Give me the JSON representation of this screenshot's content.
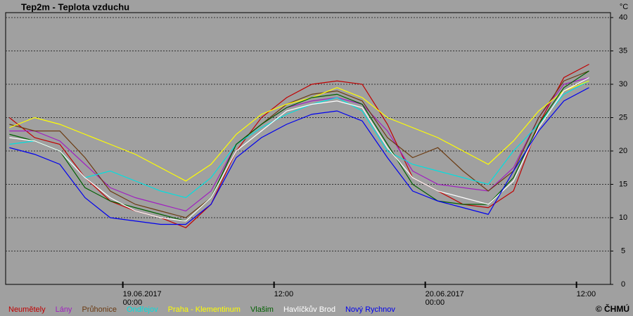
{
  "chart_data": {
    "type": "line",
    "title": "Tep2m - Teplota vzduchu",
    "y_unit": "°C",
    "credit": "© ČHMÚ",
    "x": [
      -9,
      -7,
      -5,
      -3,
      -1,
      1,
      3,
      5,
      7,
      9,
      11,
      13,
      15,
      17,
      19,
      21,
      23,
      25,
      27,
      29,
      31,
      33,
      35,
      37
    ],
    "xlim": [
      -9.3,
      38.7
    ],
    "xticks": [
      {
        "value": 0,
        "label": "19.06.2017 00:00"
      },
      {
        "value": 12,
        "label": "12:00"
      },
      {
        "value": 24,
        "label": "20.06.2017 00:00"
      },
      {
        "value": 36,
        "label": "12:00"
      }
    ],
    "ylim": [
      0,
      40
    ],
    "yticks": [
      0,
      5,
      10,
      15,
      20,
      25,
      30,
      35,
      40
    ],
    "grid": true,
    "series": [
      {
        "name": "Neumětely",
        "color": "#c00000",
        "values": [
          25,
          22,
          21,
          16,
          12.5,
          11,
          10,
          8.5,
          12,
          20,
          25,
          28,
          30,
          30.5,
          30,
          24,
          16,
          14,
          12,
          11.5,
          14,
          24,
          31,
          33
        ]
      },
      {
        "name": "Lány",
        "color": "#a020c0",
        "values": [
          23,
          23,
          21.5,
          18,
          14.5,
          13,
          12,
          11,
          14,
          21,
          24,
          26.5,
          27.5,
          28,
          27,
          23,
          17,
          15,
          14.5,
          14,
          17.5,
          25,
          30,
          31
        ]
      },
      {
        "name": "Průhonice",
        "color": "#6b3a10",
        "values": [
          24,
          23,
          23,
          19,
          14,
          12,
          11,
          10,
          13,
          21,
          24,
          27,
          28.5,
          29,
          27.5,
          22,
          19,
          20.5,
          17,
          14,
          17,
          25,
          30.5,
          32
        ]
      },
      {
        "name": "Ondřejov",
        "color": "#00e0e0",
        "values": [
          21,
          21.5,
          20,
          16,
          17,
          15.5,
          14,
          13,
          16,
          21,
          23.5,
          25.5,
          27,
          28,
          26,
          20,
          18,
          17,
          16,
          15,
          20,
          24,
          28.5,
          30.5
        ]
      },
      {
        "name": "Praha - Klementinum",
        "color": "#ffff00",
        "values": [
          23.5,
          25,
          24,
          22.5,
          21,
          19.5,
          17.5,
          15.5,
          18,
          22.5,
          25.5,
          27,
          28,
          29.5,
          28,
          25,
          23.5,
          22,
          20,
          18,
          21.5,
          26,
          29,
          30.5
        ]
      },
      {
        "name": "Vlašim",
        "color": "#006000",
        "values": [
          22.5,
          21.5,
          20,
          14.5,
          12.5,
          11.5,
          10.5,
          9.5,
          13,
          21,
          24,
          26.5,
          28,
          28.5,
          27,
          21,
          15,
          12.5,
          12,
          12,
          16,
          24,
          29.5,
          32
        ]
      },
      {
        "name": "Havlíčkův Brod",
        "color": "#ffffff",
        "values": [
          22,
          21.5,
          20,
          16,
          13,
          11,
          10,
          9.5,
          13,
          20,
          23,
          26,
          27,
          27.5,
          26.5,
          20.5,
          16,
          14,
          13,
          12,
          15.5,
          23.5,
          29,
          31
        ]
      },
      {
        "name": "Nový Rychnov",
        "color": "#0000ee",
        "values": [
          20.5,
          19.5,
          18,
          13,
          10,
          9.5,
          9,
          9,
          12,
          19,
          22,
          24,
          25.5,
          26,
          24.5,
          19,
          14,
          12.5,
          11.5,
          10.5,
          17,
          23,
          27.5,
          29.5
        ]
      }
    ]
  }
}
